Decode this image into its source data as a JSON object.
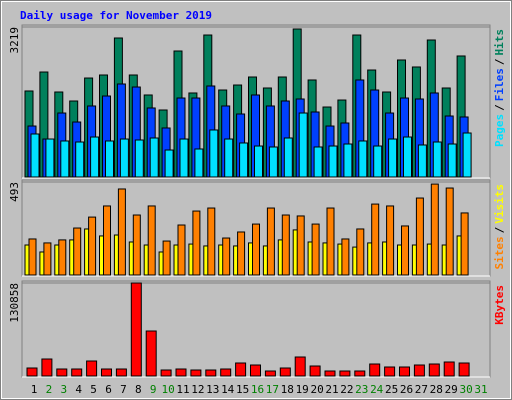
{
  "chart_data": [
    {
      "type": "bar",
      "title": "Daily usage for November 2019",
      "title_color": "#0000ff",
      "ylim": [
        0,
        3219
      ],
      "yticks": [
        3219
      ],
      "separator": "/",
      "series": [
        {
          "name": "Hits",
          "color": "#00805c",
          "values": [
            1846,
            2253,
            1824,
            1631,
            2124,
            2189,
            2983,
            2189,
            1760,
            1438,
            2704,
            1803,
            3047,
            1867,
            1974,
            2146,
            1910,
            2146,
            3176,
            2082,
            1502,
            1652,
            3047,
            2296,
            1824,
            2511,
            2361,
            2940,
            1910,
            2597,
            null
          ]
        },
        {
          "name": "Files",
          "color": "#0040ff",
          "values": [
            1094,
            815,
            1373,
            1180,
            1524,
            1738,
            1996,
            1931,
            1481,
            1052,
            1695,
            1695,
            1953,
            1524,
            1352,
            1760,
            1524,
            1631,
            1674,
            1395,
            1094,
            1159,
            2082,
            1867,
            1373,
            1695,
            1674,
            1803,
            1309,
            1288,
            null
          ]
        },
        {
          "name": "Pages",
          "color": "#00e0ff",
          "values": [
            923,
            815,
            773,
            751,
            858,
            773,
            815,
            794,
            837,
            579,
            815,
            601,
            1009,
            815,
            730,
            665,
            644,
            837,
            1373,
            644,
            665,
            708,
            773,
            665,
            815,
            858,
            687,
            751,
            708,
            944,
            null
          ]
        }
      ]
    },
    {
      "type": "bar",
      "ylim": [
        0,
        493
      ],
      "yticks": [
        493
      ],
      "separator": "/",
      "series": [
        {
          "name": "Visits",
          "color": "#ffff00",
          "values": [
            159,
            122,
            159,
            186,
            244,
            207,
            212,
            175,
            159,
            122,
            159,
            164,
            154,
            159,
            154,
            170,
            154,
            186,
            239,
            175,
            170,
            164,
            148,
            170,
            175,
            159,
            159,
            164,
            159,
            207,
            null
          ]
        },
        {
          "name": "Sites",
          "color": "#ff8000",
          "values": [
            191,
            170,
            186,
            249,
            307,
            366,
            456,
            318,
            366,
            180,
            265,
            339,
            355,
            196,
            228,
            270,
            355,
            318,
            313,
            270,
            355,
            191,
            244,
            376,
            366,
            260,
            408,
            482,
            461,
            329,
            null
          ]
        }
      ]
    },
    {
      "type": "bar",
      "ylim": [
        0,
        130858
      ],
      "yticks": [
        130858
      ],
      "categories": [
        "1",
        "2",
        "3",
        "4",
        "5",
        "6",
        "7",
        "8",
        "9",
        "10",
        "11",
        "12",
        "13",
        "14",
        "15",
        "16",
        "17",
        "18",
        "19",
        "20",
        "21",
        "22",
        "23",
        "24",
        "25",
        "26",
        "27",
        "28",
        "29",
        "30",
        "31"
      ],
      "category_colors": [
        "#000000",
        "#008000",
        "#008000",
        "#000000",
        "#000000",
        "#000000",
        "#000000",
        "#000000",
        "#008000",
        "#008000",
        "#000000",
        "#000000",
        "#000000",
        "#000000",
        "#000000",
        "#008000",
        "#008000",
        "#000000",
        "#000000",
        "#000000",
        "#000000",
        "#000000",
        "#008000",
        "#008000",
        "#000000",
        "#000000",
        "#000000",
        "#000000",
        "#000000",
        "#008000",
        "#008000"
      ],
      "series": [
        {
          "name": "KBytes",
          "color": "#ff0000",
          "values": [
            11257,
            23920,
            9850,
            9850,
            21106,
            9850,
            9850,
            130858,
            63320,
            8443,
            9850,
            8443,
            8443,
            9850,
            18292,
            15478,
            7036,
            11257,
            26735,
            14071,
            7036,
            7036,
            7036,
            16885,
            12664,
            12664,
            15478,
            16885,
            19699,
            18292,
            null
          ]
        }
      ]
    }
  ]
}
